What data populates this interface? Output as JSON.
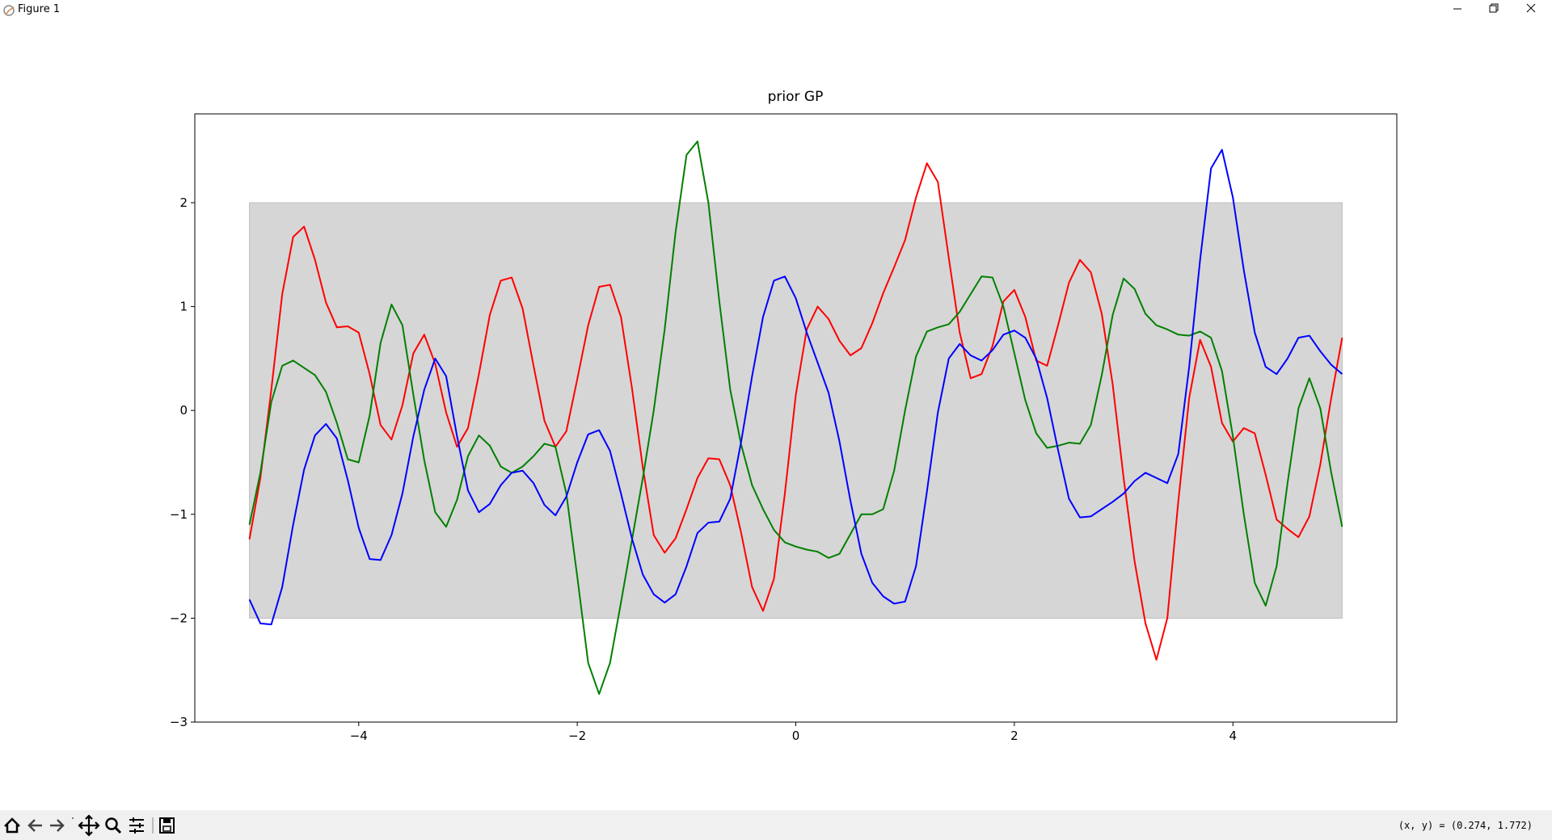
{
  "window": {
    "title": "Figure 1",
    "status": "(x, y) = (0.274, 1.772)"
  },
  "chart_data": {
    "type": "line",
    "title": "prior GP",
    "x": [
      -5,
      -4.9,
      -4.8,
      -4.7,
      -4.6,
      -4.5,
      -4.4,
      -4.3,
      -4.2,
      -4.1,
      -4,
      -3.9,
      -3.8,
      -3.7,
      -3.6,
      -3.5,
      -3.4,
      -3.3,
      -3.2,
      -3.1,
      -3,
      -2.9,
      -2.8,
      -2.7,
      -2.6,
      -2.5,
      -2.4,
      -2.3,
      -2.2,
      -2.1,
      -2,
      -1.9,
      -1.8,
      -1.7,
      -1.6,
      -1.5,
      -1.4,
      -1.3,
      -1.2,
      -1.1,
      -1,
      -0.9,
      -0.8,
      -0.7,
      -0.6,
      -0.5,
      -0.4,
      -0.3,
      -0.2,
      -0.1,
      0,
      0.1,
      0.2,
      0.3,
      0.4,
      0.5,
      0.6,
      0.7,
      0.8,
      0.9,
      1,
      1.1,
      1.2,
      1.3,
      1.4,
      1.5,
      1.6,
      1.7,
      1.8,
      1.9,
      2,
      2.1,
      2.2,
      2.3,
      2.4,
      2.5,
      2.6,
      2.7,
      2.8,
      2.9,
      3,
      3.1,
      3.2,
      3.3,
      3.4,
      3.5,
      3.6,
      3.7,
      3.8,
      3.9,
      4,
      4.1,
      4.2,
      4.3,
      4.4,
      4.5,
      4.6,
      4.7,
      4.8,
      4.9,
      5
    ],
    "series": [
      {
        "color": "#ff0000",
        "values": [
          -1.24,
          -0.65,
          0.2,
          1.12,
          1.67,
          1.77,
          1.45,
          1.04,
          0.8,
          0.81,
          0.75,
          0.35,
          -0.14,
          -0.28,
          0.05,
          0.55,
          0.73,
          0.45,
          -0.02,
          -0.35,
          -0.17,
          0.35,
          0.92,
          1.25,
          1.28,
          0.98,
          0.43,
          -0.1,
          -0.35,
          -0.2,
          0.3,
          0.82,
          1.19,
          1.21,
          0.9,
          0.22,
          -0.55,
          -1.2,
          -1.37,
          -1.23,
          -0.95,
          -0.65,
          -0.46,
          -0.47,
          -0.72,
          -1.18,
          -1.7,
          -1.93,
          -1.62,
          -0.8,
          0.15,
          0.78,
          1.0,
          0.88,
          0.67,
          0.53,
          0.6,
          0.84,
          1.13,
          1.38,
          1.64,
          2.05,
          2.38,
          2.2,
          1.47,
          0.75,
          0.31,
          0.35,
          0.62,
          1.05,
          1.16,
          0.9,
          0.48,
          0.43,
          0.82,
          1.23,
          1.45,
          1.33,
          0.93,
          0.25,
          -0.65,
          -1.45,
          -2.05,
          -2.4,
          -2.0,
          -0.88,
          0.12,
          0.68,
          0.42,
          -0.12,
          -0.3,
          -0.17,
          -0.22,
          -0.62,
          -1.05,
          -1.14,
          -1.22,
          -1.02,
          -0.52,
          0.12,
          0.7
        ]
      },
      {
        "color": "#008000",
        "values": [
          -1.1,
          -0.6,
          0.08,
          0.43,
          0.48,
          0.41,
          0.34,
          0.18,
          -0.12,
          -0.47,
          -0.5,
          -0.05,
          0.65,
          1.02,
          0.82,
          0.15,
          -0.48,
          -0.98,
          -1.12,
          -0.86,
          -0.44,
          -0.24,
          -0.34,
          -0.54,
          -0.6,
          -0.54,
          -0.44,
          -0.32,
          -0.35,
          -0.8,
          -1.6,
          -2.43,
          -2.73,
          -2.43,
          -1.85,
          -1.25,
          -0.65,
          0.0,
          0.78,
          1.72,
          2.46,
          2.59,
          2.0,
          1.05,
          0.2,
          -0.33,
          -0.72,
          -0.95,
          -1.15,
          -1.27,
          -1.31,
          -1.34,
          -1.36,
          -1.42,
          -1.38,
          -1.19,
          -1.0,
          -1.0,
          -0.95,
          -0.58,
          0.0,
          0.52,
          0.76,
          0.8,
          0.83,
          0.95,
          1.12,
          1.29,
          1.28,
          1.0,
          0.55,
          0.1,
          -0.22,
          -0.36,
          -0.34,
          -0.31,
          -0.32,
          -0.14,
          0.34,
          0.92,
          1.27,
          1.17,
          0.93,
          0.82,
          0.78,
          0.73,
          0.72,
          0.76,
          0.7,
          0.38,
          -0.25,
          -1.0,
          -1.66,
          -1.88,
          -1.5,
          -0.7,
          0.02,
          0.31,
          0.02,
          -0.6,
          -1.12
        ]
      },
      {
        "color": "#0000ff",
        "values": [
          -1.82,
          -2.05,
          -2.06,
          -1.7,
          -1.1,
          -0.57,
          -0.24,
          -0.13,
          -0.27,
          -0.67,
          -1.13,
          -1.43,
          -1.44,
          -1.2,
          -0.8,
          -0.25,
          0.2,
          0.5,
          0.33,
          -0.25,
          -0.77,
          -0.98,
          -0.9,
          -0.72,
          -0.6,
          -0.58,
          -0.7,
          -0.91,
          -1.01,
          -0.83,
          -0.5,
          -0.23,
          -0.19,
          -0.39,
          -0.8,
          -1.23,
          -1.58,
          -1.77,
          -1.85,
          -1.77,
          -1.5,
          -1.18,
          -1.08,
          -1.07,
          -0.85,
          -0.3,
          0.33,
          0.9,
          1.25,
          1.29,
          1.08,
          0.75,
          0.46,
          0.17,
          -0.3,
          -0.87,
          -1.38,
          -1.66,
          -1.79,
          -1.86,
          -1.84,
          -1.5,
          -0.78,
          -0.02,
          0.5,
          0.64,
          0.53,
          0.48,
          0.58,
          0.73,
          0.77,
          0.7,
          0.5,
          0.12,
          -0.38,
          -0.85,
          -1.03,
          -1.02,
          -0.95,
          -0.88,
          -0.8,
          -0.68,
          -0.6,
          -0.65,
          -0.7,
          -0.42,
          0.42,
          1.45,
          2.33,
          2.51,
          2.05,
          1.35,
          0.75,
          0.42,
          0.35,
          0.5,
          0.7,
          0.72,
          0.57,
          0.44,
          0.35
        ]
      }
    ],
    "band": {
      "x": [
        -5,
        5
      ],
      "lower": [
        -2,
        -2
      ],
      "upper": [
        2,
        2
      ],
      "color": "#d6d6d6"
    },
    "xlim": [
      -5.5,
      5.5
    ],
    "ylim": [
      -3.0,
      2.855
    ],
    "xticks": [
      {
        "value": -4,
        "label": "−4"
      },
      {
        "value": -2,
        "label": "−2"
      },
      0,
      2,
      4
    ],
    "yticks": [
      {
        "value": -3,
        "label": "−3"
      },
      {
        "value": -2,
        "label": "−2"
      },
      {
        "value": -1,
        "label": "−1"
      },
      0,
      1,
      2
    ],
    "grid": false
  }
}
